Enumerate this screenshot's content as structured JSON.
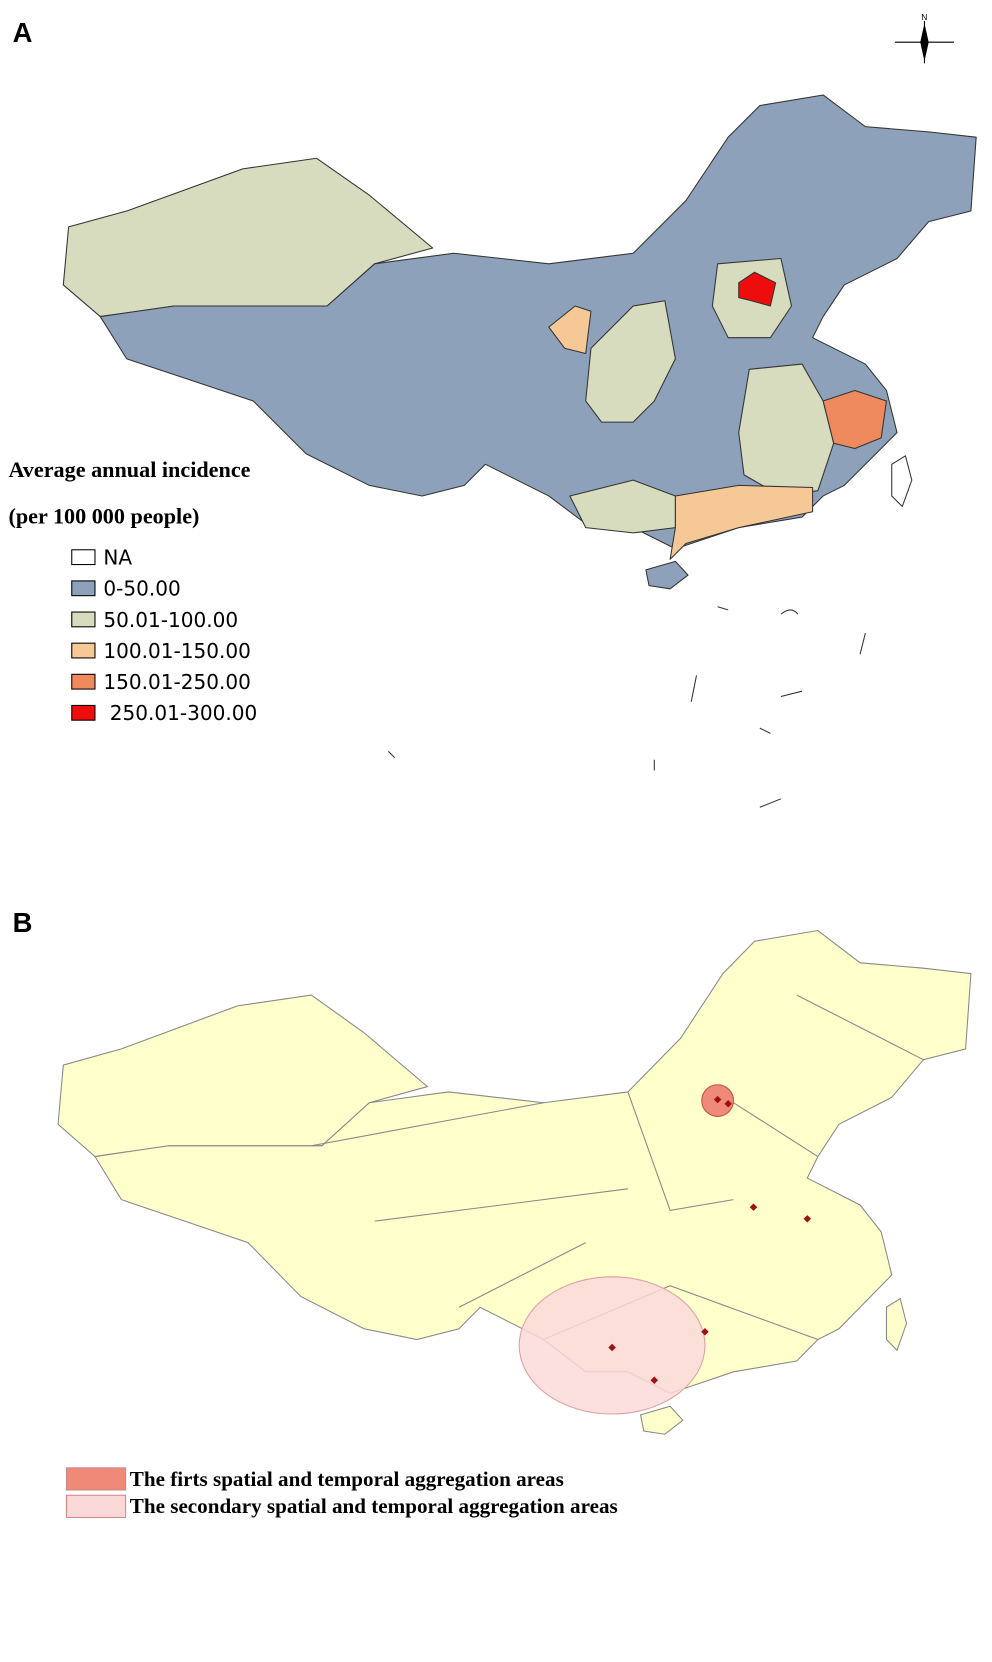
{
  "panel_a": {
    "label": "A",
    "compass": "N",
    "legend": {
      "title": [
        "Average annual incidence",
        "(per 100 000 people)"
      ],
      "items": [
        {
          "label": "NA",
          "color": "#ffffff"
        },
        {
          "label": "0-50.00",
          "color": "#8ea1ba"
        },
        {
          "label": "50.01-100.00",
          "color": "#d6dcbd"
        },
        {
          "label": "100.01-150.00",
          "color": "#f6c895"
        },
        {
          "label": "150.01-250.00",
          "color": "#ef8a5e"
        },
        {
          "label": "250.01-300.00",
          "color": "#ee0c0c"
        }
      ]
    }
  },
  "panel_b": {
    "label": "B",
    "legend": {
      "items": [
        {
          "label": "The firts spatial and temporal aggregation areas",
          "color": "#ef8a78"
        },
        {
          "label": "The secondary spatial and temporal aggregation areas",
          "color": "#fcd9d9"
        }
      ]
    }
  }
}
